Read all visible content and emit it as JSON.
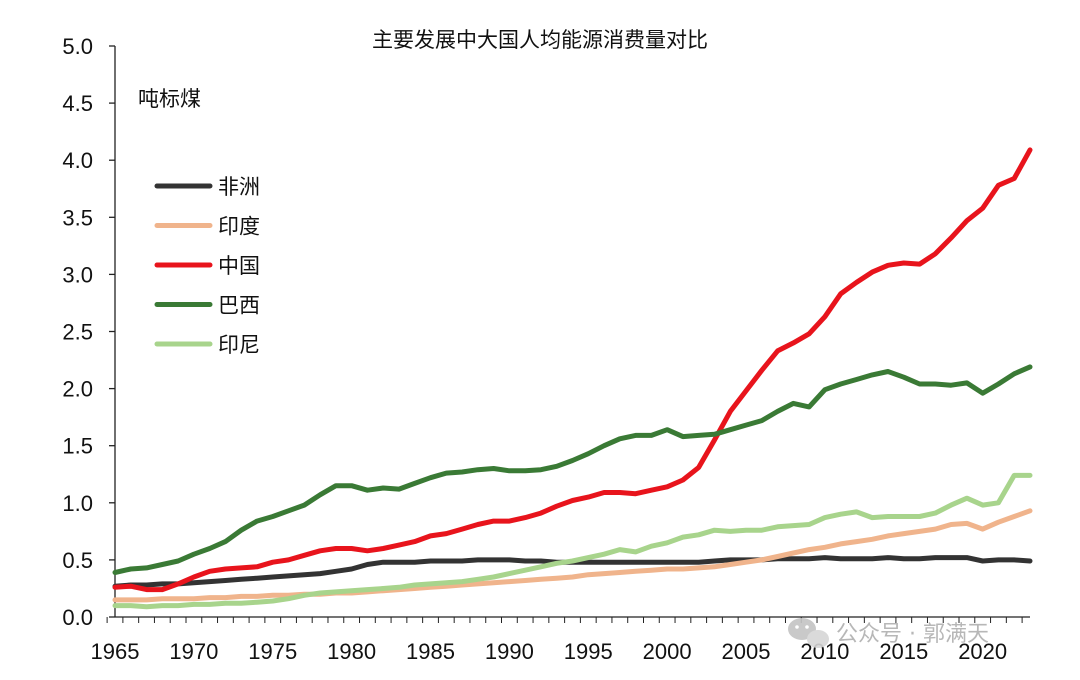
{
  "chart_data": {
    "type": "line",
    "title": "主要发展中大国人均能源消费量对比",
    "ylabel": "吨标煤",
    "xlabel": "",
    "ylim": [
      0,
      5.0
    ],
    "xlim": [
      1965,
      2023
    ],
    "yticks": [
      "0.0",
      "0.5",
      "1.0",
      "1.5",
      "2.0",
      "2.5",
      "3.0",
      "3.5",
      "4.0",
      "4.5",
      "5.0"
    ],
    "xticks": [
      "1965",
      "1970",
      "1975",
      "1980",
      "1985",
      "1990",
      "1995",
      "2000",
      "2005",
      "2010",
      "2015",
      "2020"
    ],
    "grid": false,
    "legend_position": "upper-left",
    "x": [
      1965,
      1966,
      1967,
      1968,
      1969,
      1970,
      1971,
      1972,
      1973,
      1974,
      1975,
      1976,
      1977,
      1978,
      1979,
      1980,
      1981,
      1982,
      1983,
      1984,
      1985,
      1986,
      1987,
      1988,
      1989,
      1990,
      1991,
      1992,
      1993,
      1994,
      1995,
      1996,
      1997,
      1998,
      1999,
      2000,
      2001,
      2002,
      2003,
      2004,
      2005,
      2006,
      2007,
      2008,
      2009,
      2010,
      2011,
      2012,
      2013,
      2014,
      2015,
      2016,
      2017,
      2018,
      2019,
      2020,
      2021,
      2022,
      2023
    ],
    "series": [
      {
        "name": "非洲",
        "color": "#333333",
        "values": [
          0.27,
          0.28,
          0.28,
          0.29,
          0.29,
          0.3,
          0.31,
          0.32,
          0.33,
          0.34,
          0.35,
          0.36,
          0.37,
          0.38,
          0.4,
          0.42,
          0.46,
          0.48,
          0.48,
          0.48,
          0.49,
          0.49,
          0.49,
          0.5,
          0.5,
          0.5,
          0.49,
          0.49,
          0.48,
          0.48,
          0.48,
          0.48,
          0.48,
          0.48,
          0.48,
          0.48,
          0.48,
          0.48,
          0.49,
          0.5,
          0.5,
          0.5,
          0.51,
          0.51,
          0.51,
          0.52,
          0.51,
          0.51,
          0.51,
          0.52,
          0.51,
          0.51,
          0.52,
          0.52,
          0.52,
          0.49,
          0.5,
          0.5,
          0.49
        ]
      },
      {
        "name": "印度",
        "color": "#f0b48c",
        "values": [
          0.15,
          0.15,
          0.15,
          0.16,
          0.16,
          0.16,
          0.17,
          0.17,
          0.18,
          0.18,
          0.19,
          0.19,
          0.2,
          0.2,
          0.21,
          0.21,
          0.22,
          0.23,
          0.24,
          0.25,
          0.26,
          0.27,
          0.28,
          0.29,
          0.3,
          0.31,
          0.32,
          0.33,
          0.34,
          0.35,
          0.37,
          0.38,
          0.39,
          0.4,
          0.41,
          0.42,
          0.42,
          0.43,
          0.44,
          0.46,
          0.48,
          0.5,
          0.53,
          0.56,
          0.59,
          0.61,
          0.64,
          0.66,
          0.68,
          0.71,
          0.73,
          0.75,
          0.77,
          0.81,
          0.82,
          0.77,
          0.83,
          0.88,
          0.93
        ]
      },
      {
        "name": "中国",
        "color": "#e8141c",
        "values": [
          0.26,
          0.27,
          0.24,
          0.24,
          0.29,
          0.35,
          0.4,
          0.42,
          0.43,
          0.44,
          0.48,
          0.5,
          0.54,
          0.58,
          0.6,
          0.6,
          0.58,
          0.6,
          0.63,
          0.66,
          0.71,
          0.73,
          0.77,
          0.81,
          0.84,
          0.84,
          0.87,
          0.91,
          0.97,
          1.02,
          1.05,
          1.09,
          1.09,
          1.08,
          1.11,
          1.14,
          1.2,
          1.31,
          1.55,
          1.8,
          1.98,
          2.16,
          2.33,
          2.4,
          2.48,
          2.63,
          2.83,
          2.93,
          3.02,
          3.08,
          3.1,
          3.09,
          3.18,
          3.32,
          3.47,
          3.58,
          3.78,
          3.84,
          4.09
        ]
      },
      {
        "name": "巴西",
        "color": "#3a7a35",
        "values": [
          0.39,
          0.42,
          0.43,
          0.46,
          0.49,
          0.55,
          0.6,
          0.66,
          0.76,
          0.84,
          0.88,
          0.93,
          0.98,
          1.07,
          1.15,
          1.15,
          1.11,
          1.13,
          1.12,
          1.17,
          1.22,
          1.26,
          1.27,
          1.29,
          1.3,
          1.28,
          1.28,
          1.29,
          1.32,
          1.37,
          1.43,
          1.5,
          1.56,
          1.59,
          1.59,
          1.64,
          1.58,
          1.59,
          1.6,
          1.64,
          1.68,
          1.72,
          1.8,
          1.87,
          1.84,
          1.99,
          2.04,
          2.08,
          2.12,
          2.15,
          2.1,
          2.04,
          2.04,
          2.03,
          2.05,
          1.96,
          2.04,
          2.13,
          2.19
        ]
      },
      {
        "name": "印尼",
        "color": "#a8d48c",
        "values": [
          0.1,
          0.1,
          0.09,
          0.1,
          0.1,
          0.11,
          0.11,
          0.12,
          0.12,
          0.13,
          0.14,
          0.16,
          0.19,
          0.21,
          0.22,
          0.23,
          0.24,
          0.25,
          0.26,
          0.28,
          0.29,
          0.3,
          0.31,
          0.33,
          0.35,
          0.38,
          0.41,
          0.44,
          0.47,
          0.49,
          0.52,
          0.55,
          0.59,
          0.57,
          0.62,
          0.65,
          0.7,
          0.72,
          0.76,
          0.75,
          0.76,
          0.76,
          0.79,
          0.8,
          0.81,
          0.87,
          0.9,
          0.92,
          0.87,
          0.88,
          0.88,
          0.88,
          0.91,
          0.98,
          1.04,
          0.98,
          1.0,
          1.24,
          1.24
        ]
      }
    ]
  },
  "watermark": {
    "icon": "wechat-icon",
    "text": "公众号 · 郭满天",
    "color": "#b0b0b0"
  }
}
